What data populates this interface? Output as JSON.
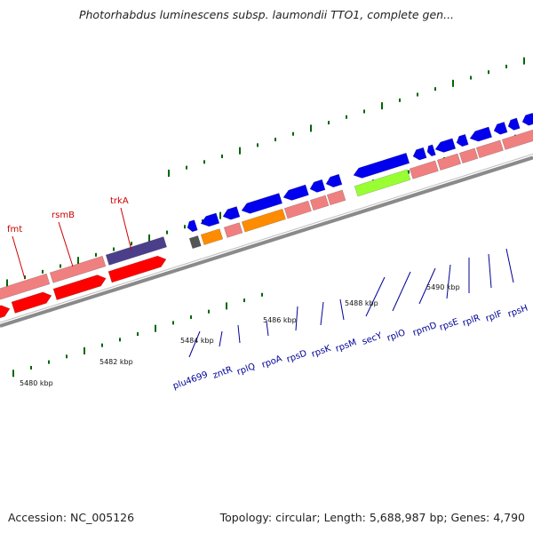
{
  "title": "Photorhabdus luminescens subsp. laumondii TTO1, complete gen...",
  "footer": {
    "accession": "Accession: NC_005126",
    "stats": "Topology: circular; Length: 5,688,987 bp; Genes: 4,790"
  },
  "colors": {
    "backbone": "#8a8a8a",
    "cds_forward": "#0000ee",
    "cds_reverse": "#ff0000",
    "gene_pink": "#f08080",
    "rrna_orange": "#ff8c00",
    "trna_green": "#99ff33",
    "purple": "#4b3f8c",
    "dark_grey": "#555555",
    "tick": "#006600",
    "label_blue": "#000099",
    "label_red": "#cc0000"
  },
  "kbp_labels": [
    "5480 kbp",
    "5482 kbp",
    "5484 kbp",
    "5486 kbp",
    "5488 kbp",
    "5490 kbp"
  ],
  "red_gene_labels": [
    "fmt",
    "rsmB",
    "trkA"
  ],
  "blue_gene_labels": [
    "plu4699",
    "zntR",
    "rplQ",
    "rpoA",
    "rpsD",
    "rpsK",
    "rpsM",
    "secY",
    "rplO",
    "rpmD",
    "rpsE",
    "rplR",
    "rplF",
    "rpsH"
  ]
}
